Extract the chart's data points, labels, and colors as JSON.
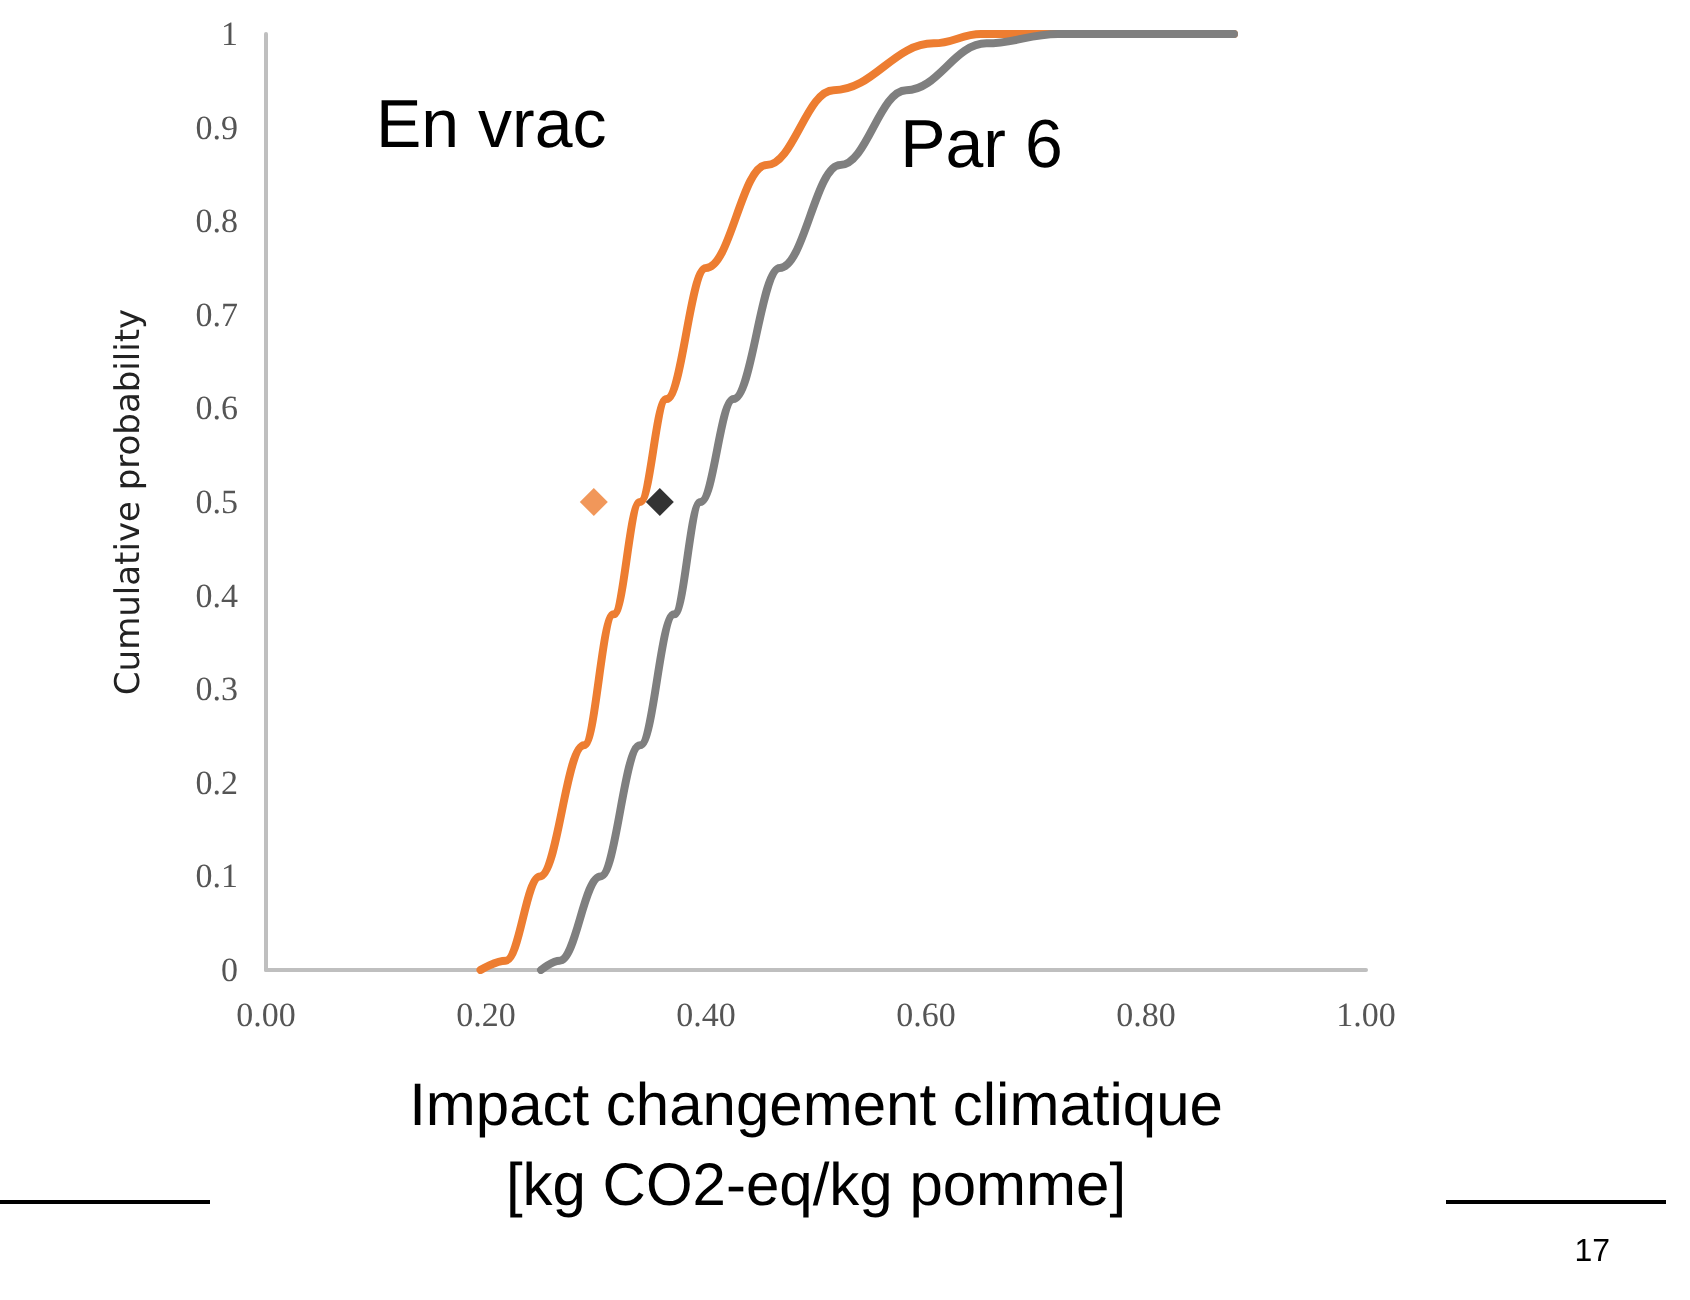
{
  "chart_data": {
    "type": "line",
    "xlabel": "Impact changement climatique\n[kg CO2-eq/kg pomme]",
    "ylabel": "Cumulative probability",
    "xlim": [
      0,
      1
    ],
    "xticks": [
      {
        "value": 0,
        "label": "0.00"
      },
      {
        "value": 0.2,
        "label": "0.20"
      },
      {
        "value": 0.4,
        "label": "0.40"
      },
      {
        "value": 0.6,
        "label": "0.60"
      },
      {
        "value": 0.8,
        "label": "0.80"
      },
      {
        "value": 1,
        "label": "1.00"
      }
    ],
    "ylim": [
      0,
      1
    ],
    "yticks": [
      0,
      0.1,
      0.2,
      0.3,
      0.4,
      0.5,
      0.6,
      0.7,
      0.8,
      0.9,
      1
    ],
    "grid": false,
    "marker": "none",
    "line_style": "solid",
    "series": [
      {
        "name": "En vrac",
        "color": "#ed7d31",
        "x": [
          0.195,
          0.218,
          0.249,
          0.289,
          0.316,
          0.34,
          0.364,
          0.4,
          0.455,
          0.516,
          0.607,
          0.65,
          0.88
        ],
        "values": [
          0,
          0.01,
          0.1,
          0.24,
          0.38,
          0.5,
          0.61,
          0.75,
          0.86,
          0.94,
          0.99,
          1,
          1
        ]
      },
      {
        "name": "Par 6",
        "color": "#7f7f7f",
        "x": [
          0.25,
          0.267,
          0.304,
          0.34,
          0.371,
          0.395,
          0.425,
          0.467,
          0.522,
          0.582,
          0.655,
          0.72,
          0.88
        ],
        "values": [
          0,
          0.01,
          0.1,
          0.24,
          0.38,
          0.5,
          0.61,
          0.75,
          0.86,
          0.94,
          0.99,
          1,
          1
        ]
      },
      {
        "type": "scatter",
        "marker": "diamond",
        "color": "#ed7d31",
        "x": [
          0.298
        ],
        "values": [
          0.5
        ]
      },
      {
        "type": "scatter",
        "marker": "diamond",
        "color": "#000000",
        "x": [
          0.358
        ],
        "values": [
          0.5
        ]
      }
    ],
    "annotations": [
      "17"
    ]
  }
}
